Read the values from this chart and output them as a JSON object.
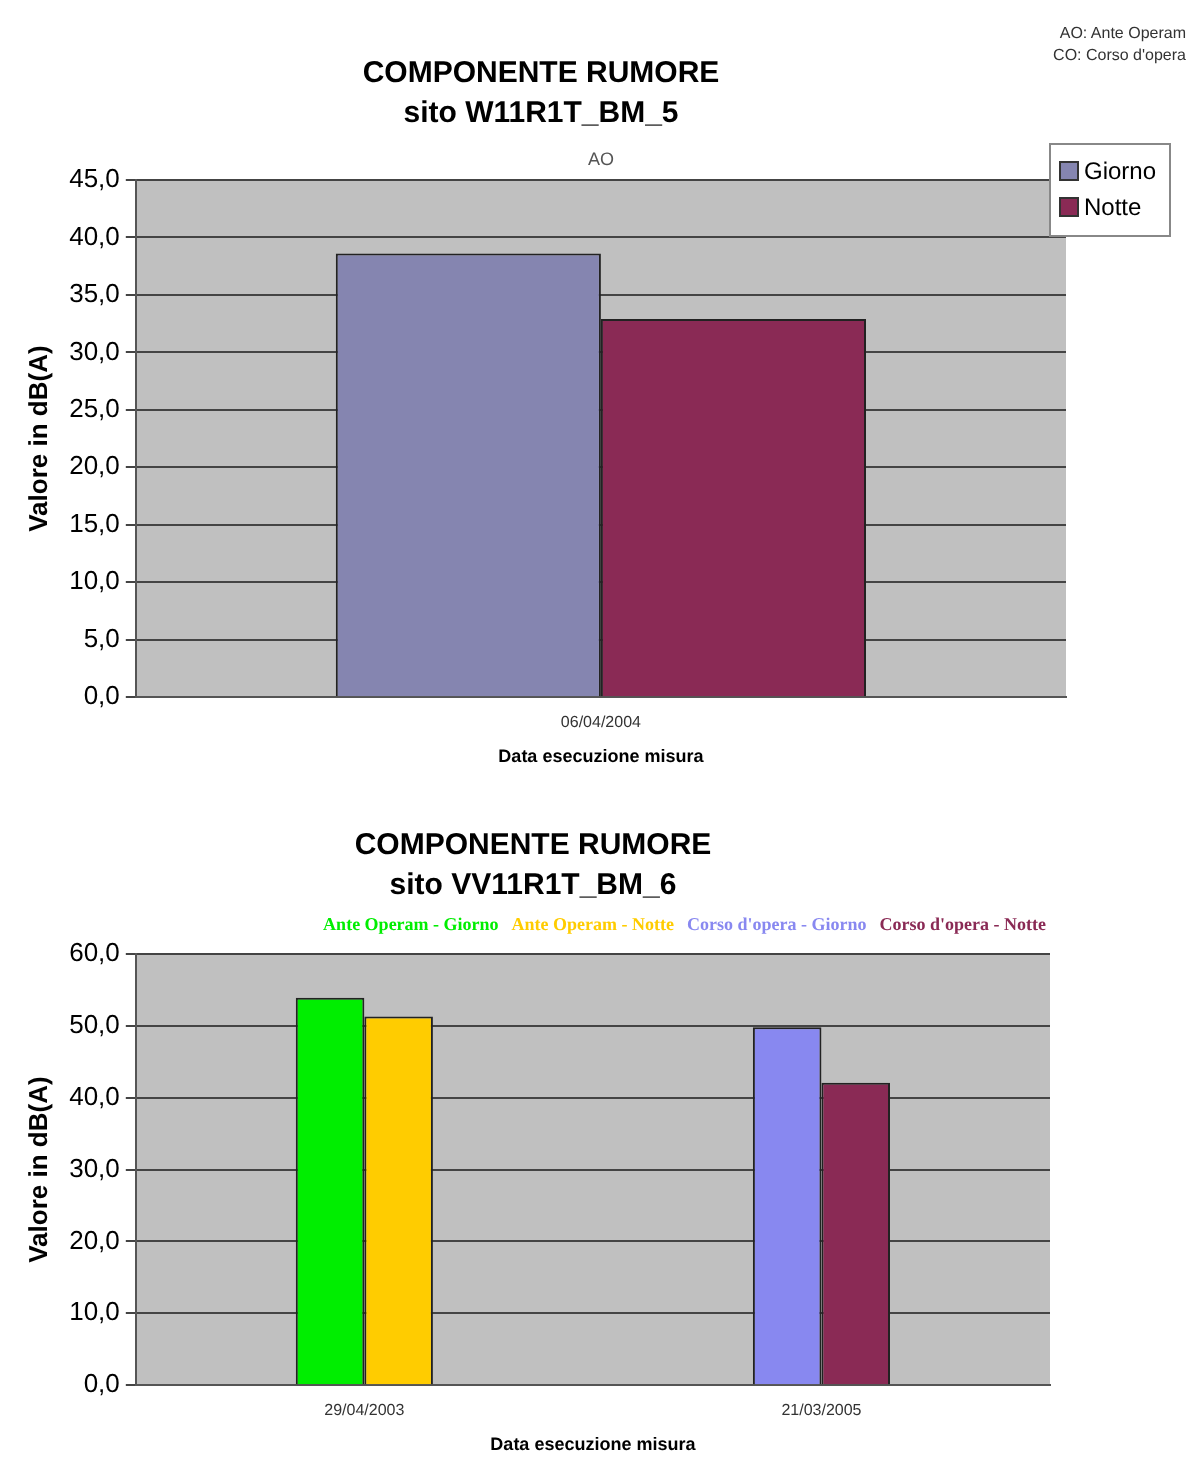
{
  "chart_data": [
    {
      "type": "bar",
      "title": "COMPONENTE RUMORE",
      "subtitle": "sito W11R1T_BM_5",
      "xlabel": "Data esecuzione misura",
      "ylabel": "Valore in dB(A)",
      "categories": [
        "06/04/2004"
      ],
      "series": [
        {
          "name": "Giorno",
          "color": "#8585b0",
          "values": [
            38.6
          ]
        },
        {
          "name": "Notte",
          "color": "#8a2a55",
          "values": [
            32.9
          ]
        }
      ],
      "ylim": [
        0,
        45
      ],
      "yticks": [
        {
          "value": 0,
          "label": "0,0"
        },
        {
          "value": 5,
          "label": "5,0"
        },
        {
          "value": 10,
          "label": "10,0"
        },
        {
          "value": 15,
          "label": "15,0"
        },
        {
          "value": 20,
          "label": "20,0"
        },
        {
          "value": 25,
          "label": "25,0"
        },
        {
          "value": 30,
          "label": "30,0"
        },
        {
          "value": 35,
          "label": "35,0"
        },
        {
          "value": 40,
          "label": "40,0"
        },
        {
          "value": 45,
          "label": "45,0"
        }
      ],
      "grid": "y",
      "legend": "top right",
      "annotations": [
        "AO: Ante Operam",
        "CO: Corso d'opera",
        "AO"
      ]
    },
    {
      "type": "bar",
      "title": "COMPONENTE RUMORE",
      "subtitle": "sito VV11R1T_BM_6",
      "xlabel": "Data esecuzione misura",
      "ylabel": "Valore in dB(A)",
      "categories": [
        "29/04/2003",
        "21/03/2005"
      ],
      "series": [
        {
          "name": "Ante Operam - Giorno",
          "color": "#00ee00",
          "values": [
            53.9,
            null
          ]
        },
        {
          "name": "Ante Operam - Notte",
          "color": "#ffcc00",
          "values": [
            51.3,
            null
          ]
        },
        {
          "name": "Corso d'opera - Giorno",
          "color": "#8888f0",
          "values": [
            null,
            49.8
          ]
        },
        {
          "name": "Corso d'opera - Notte",
          "color": "#8a2a55",
          "values": [
            null,
            42.1
          ]
        }
      ],
      "ylim": [
        0,
        60
      ],
      "yticks": [
        {
          "value": 0,
          "label": "0,0"
        },
        {
          "value": 10,
          "label": "10,0"
        },
        {
          "value": 20,
          "label": "20,0"
        },
        {
          "value": 30,
          "label": "30,0"
        },
        {
          "value": 40,
          "label": "40,0"
        },
        {
          "value": 50,
          "label": "50,0"
        },
        {
          "value": 60,
          "label": "60,0"
        }
      ],
      "grid": "y",
      "legend": "top right"
    }
  ]
}
